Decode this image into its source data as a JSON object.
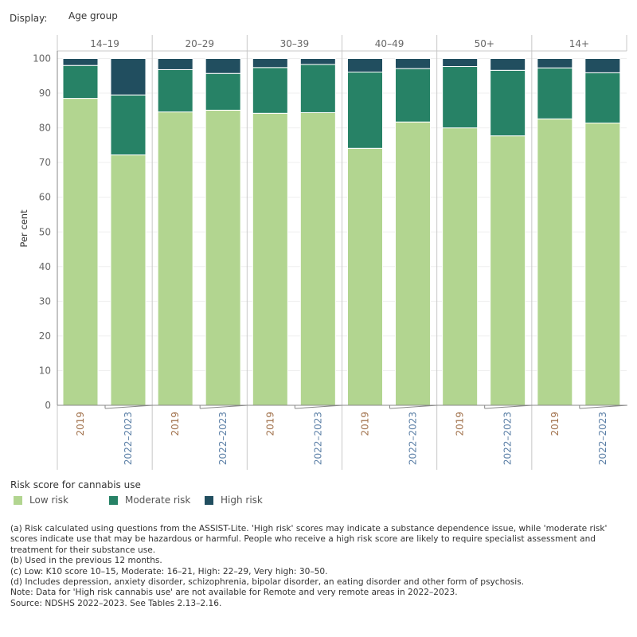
{
  "display": {
    "label": "Display:",
    "value": "Age group"
  },
  "chart_data": {
    "type": "bar",
    "stacked": true,
    "ylabel": "Per cent",
    "ylim": [
      0,
      100
    ],
    "yticks": [
      0,
      10,
      20,
      30,
      40,
      50,
      60,
      70,
      80,
      90,
      100
    ],
    "grid": true,
    "groups": [
      "14–19",
      "20–29",
      "30–39",
      "40–49",
      "50+",
      "14+"
    ],
    "categories": [
      "2019",
      "2022–2023"
    ],
    "series": [
      {
        "name": "Low risk",
        "color": "#b2d590",
        "values": [
          [
            88.5,
            72.2
          ],
          [
            84.6,
            85.1
          ],
          [
            84.2,
            84.4
          ],
          [
            74.1,
            81.7
          ],
          [
            80.0,
            77.7
          ],
          [
            82.6,
            81.4
          ]
        ]
      },
      {
        "name": "Moderate risk",
        "color": "#278266",
        "values": [
          [
            9.5,
            17.3
          ],
          [
            12.2,
            10.6
          ],
          [
            13.2,
            13.9
          ],
          [
            22.0,
            15.4
          ],
          [
            17.7,
            18.9
          ],
          [
            14.7,
            14.5
          ]
        ]
      },
      {
        "name": "High risk",
        "color": "#214e5f",
        "values": [
          [
            2.0,
            10.5
          ],
          [
            3.2,
            4.3
          ],
          [
            2.6,
            1.7
          ],
          [
            3.9,
            2.9
          ],
          [
            2.3,
            3.4
          ],
          [
            2.7,
            4.1
          ]
        ]
      }
    ],
    "legend": {
      "title": "Risk score for cannabis use",
      "position": "bottom-left"
    }
  },
  "notes": [
    "(a) Risk calculated using questions from the ASSIST-Lite. 'High risk' scores may indicate a substance dependence issue, while 'moderate risk' scores indicate use that may be hazardous or harmful. People who receive a high risk score are likely to require specialist assessment and treatment for their substance use.",
    "(b) Used in the previous 12 months.",
    "(c) Low: K10 score 10–15, Moderate: 16–21, High: 22–29, Very high: 30–50.",
    "(d) Includes depression, anxiety disorder, schizophrenia, bipolar disorder, an eating disorder and other form of psychosis.",
    "Note: Data for 'High risk cannabis use' are not available for Remote and very remote areas in 2022–2023.",
    "Source: NDSHS 2022–2023. See Tables 2.13–2.16."
  ]
}
